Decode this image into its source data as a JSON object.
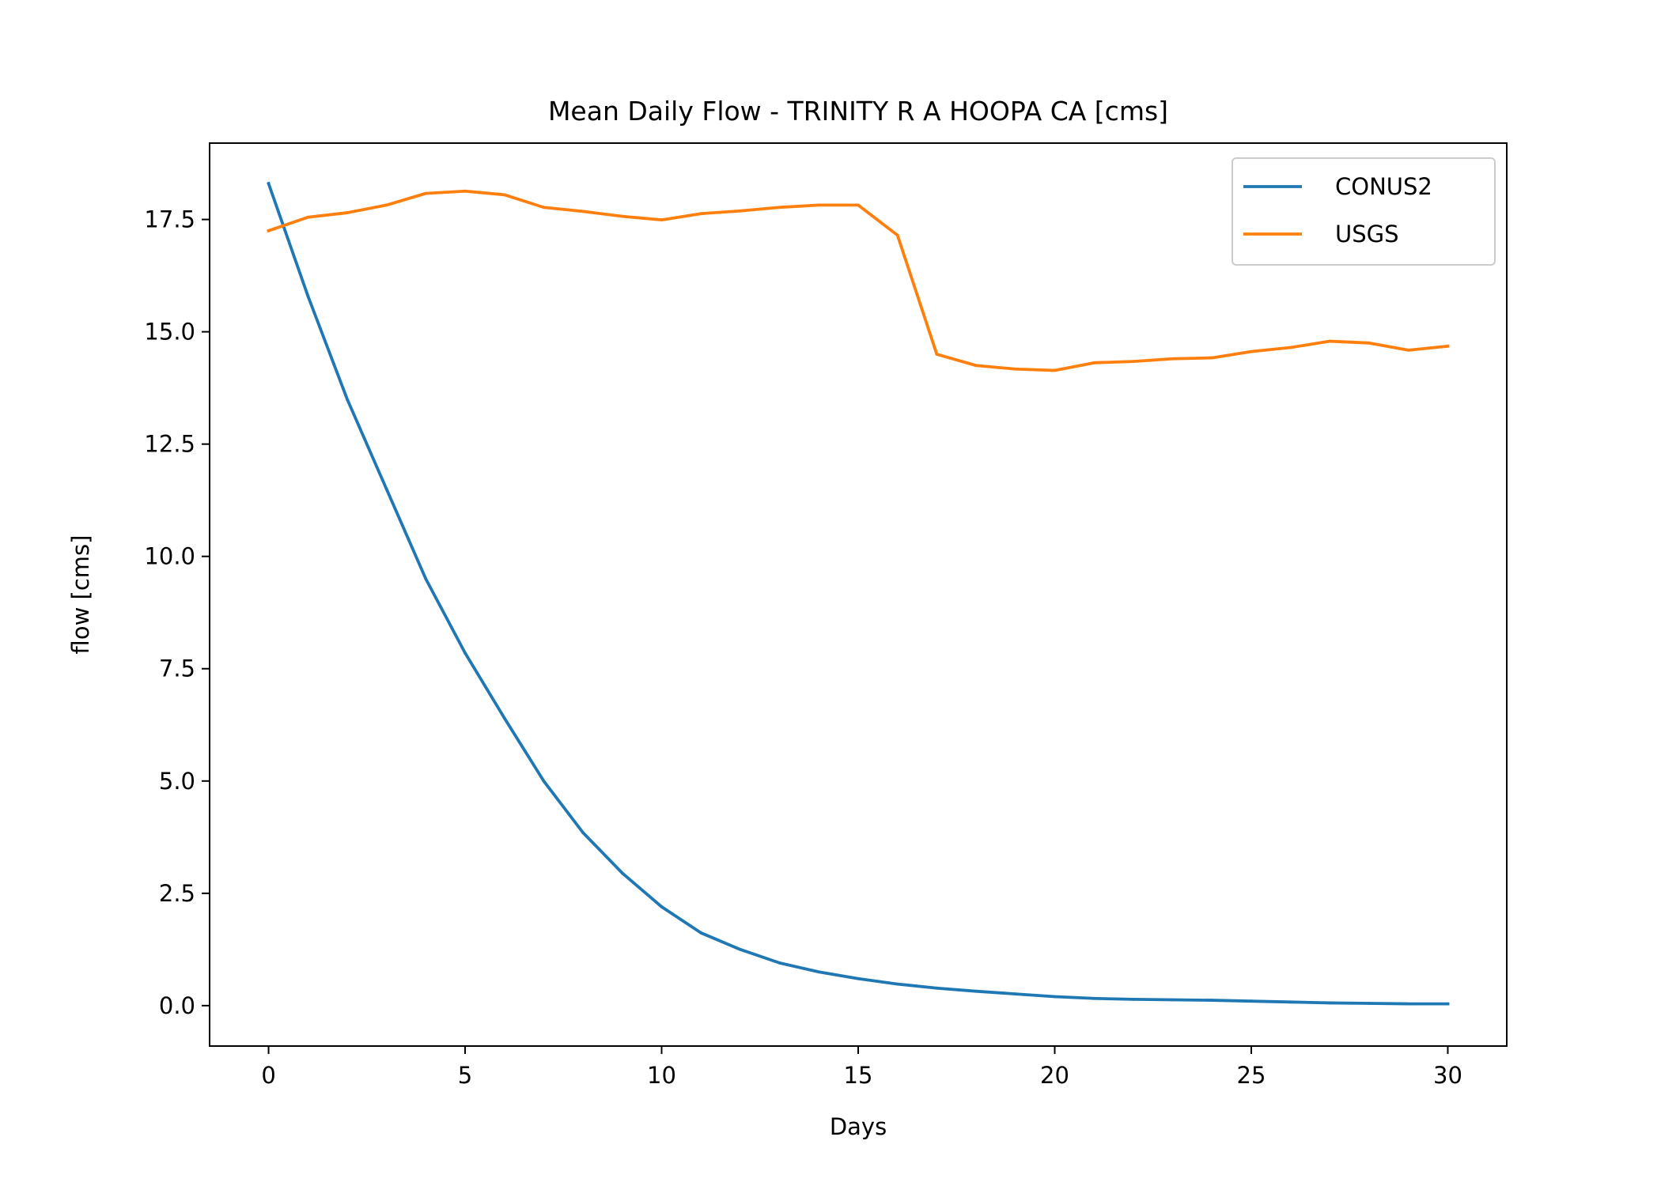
{
  "chart_data": {
    "type": "line",
    "title": "Mean Daily Flow - TRINITY R A HOOPA CA [cms]",
    "xlabel": "Days",
    "ylabel": "flow [cms]",
    "xlim": [
      -1.5,
      31.5
    ],
    "ylim": [
      -0.9,
      19.2
    ],
    "xticks": [
      0,
      5,
      10,
      15,
      20,
      25,
      30
    ],
    "yticks": [
      0.0,
      2.5,
      5.0,
      7.5,
      10.0,
      12.5,
      15.0,
      17.5
    ],
    "xtick_labels": [
      "0",
      "5",
      "10",
      "15",
      "20",
      "25",
      "30"
    ],
    "ytick_labels": [
      "0.0",
      "2.5",
      "5.0",
      "7.5",
      "10.0",
      "12.5",
      "15.0",
      "17.5"
    ],
    "grid": false,
    "legend_position": "top-right",
    "x": [
      0,
      1,
      2,
      3,
      4,
      5,
      6,
      7,
      8,
      9,
      10,
      11,
      12,
      13,
      14,
      15,
      16,
      17,
      18,
      19,
      20,
      21,
      22,
      23,
      24,
      25,
      26,
      27,
      28,
      29,
      30
    ],
    "series": [
      {
        "name": "CONUS2",
        "color": "#1f77b4",
        "values": [
          18.3,
          15.8,
          13.5,
          11.5,
          9.5,
          7.85,
          6.4,
          5.0,
          3.85,
          2.95,
          2.2,
          1.62,
          1.25,
          0.95,
          0.75,
          0.6,
          0.48,
          0.39,
          0.32,
          0.26,
          0.2,
          0.16,
          0.14,
          0.13,
          0.12,
          0.1,
          0.08,
          0.06,
          0.05,
          0.04,
          0.04
        ]
      },
      {
        "name": "USGS",
        "color": "#ff7f0e",
        "values": [
          17.25,
          17.55,
          17.65,
          17.82,
          18.08,
          18.13,
          18.05,
          17.77,
          17.68,
          17.57,
          17.49,
          17.63,
          17.69,
          17.77,
          17.82,
          17.82,
          17.15,
          14.5,
          14.25,
          14.17,
          14.14,
          14.31,
          14.34,
          14.4,
          14.42,
          14.56,
          14.65,
          14.79,
          14.75,
          14.59,
          14.68
        ]
      }
    ]
  }
}
